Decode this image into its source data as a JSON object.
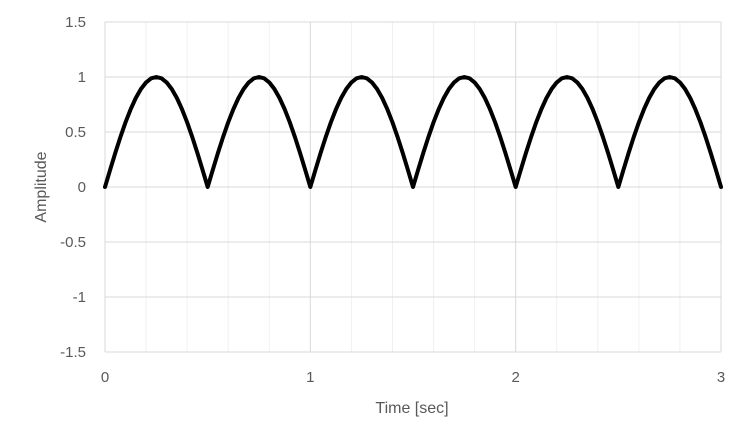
{
  "chart_data": {
    "type": "line",
    "title": "",
    "xlabel": "Time [sec]",
    "ylabel": "Amplitude",
    "xlim": [
      0,
      3
    ],
    "ylim": [
      -1.5,
      1.5
    ],
    "x_ticks": [
      0,
      1,
      2,
      3
    ],
    "x_tick_labels": [
      "0",
      "1",
      "2",
      "3"
    ],
    "x_minor_step": 0.2,
    "y_ticks": [
      -1.5,
      -1,
      -0.5,
      0,
      0.5,
      1,
      1.5
    ],
    "y_tick_labels": [
      "-1.5",
      "-1",
      "-0.5",
      "0",
      "0.5",
      "1",
      "1.5"
    ],
    "grid": true,
    "legend": "none",
    "series": [
      {
        "color": "#000000",
        "x": [
          0,
          0.025,
          0.05,
          0.075,
          0.1,
          0.125,
          0.15,
          0.175,
          0.2,
          0.225,
          0.25,
          0.275,
          0.3,
          0.325,
          0.35,
          0.375,
          0.4,
          0.425,
          0.45,
          0.475,
          0.5,
          0.525,
          0.55,
          0.575,
          0.6,
          0.625,
          0.65,
          0.675,
          0.7,
          0.725,
          0.75,
          0.775,
          0.8,
          0.825,
          0.85,
          0.875,
          0.9,
          0.925,
          0.95,
          0.975,
          1.0,
          1.025,
          1.05,
          1.075,
          1.1,
          1.125,
          1.15,
          1.175,
          1.2,
          1.225,
          1.25,
          1.275,
          1.3,
          1.325,
          1.35,
          1.375,
          1.4,
          1.425,
          1.45,
          1.475,
          1.5,
          1.525,
          1.55,
          1.575,
          1.6,
          1.625,
          1.65,
          1.675,
          1.7,
          1.725,
          1.75,
          1.775,
          1.8,
          1.825,
          1.85,
          1.875,
          1.9,
          1.925,
          1.95,
          1.975,
          2.0,
          2.025,
          2.05,
          2.075,
          2.1,
          2.125,
          2.15,
          2.175,
          2.2,
          2.225,
          2.25,
          2.275,
          2.3,
          2.325,
          2.35,
          2.375,
          2.4,
          2.425,
          2.45,
          2.475,
          2.5,
          2.525,
          2.55,
          2.575,
          2.6,
          2.625,
          2.65,
          2.675,
          2.7,
          2.725,
          2.75,
          2.775,
          2.8,
          2.825,
          2.85,
          2.875,
          2.9,
          2.925,
          2.95,
          2.975,
          3.0
        ],
        "y": [
          0,
          0.156,
          0.309,
          0.454,
          0.588,
          0.707,
          0.809,
          0.891,
          0.951,
          0.988,
          1.0,
          0.988,
          0.951,
          0.891,
          0.809,
          0.707,
          0.588,
          0.454,
          0.309,
          0.156,
          0,
          0.156,
          0.309,
          0.454,
          0.588,
          0.707,
          0.809,
          0.891,
          0.951,
          0.988,
          1.0,
          0.988,
          0.951,
          0.891,
          0.809,
          0.707,
          0.588,
          0.454,
          0.309,
          0.156,
          0,
          0.156,
          0.309,
          0.454,
          0.588,
          0.707,
          0.809,
          0.891,
          0.951,
          0.988,
          1.0,
          0.988,
          0.951,
          0.891,
          0.809,
          0.707,
          0.588,
          0.454,
          0.309,
          0.156,
          0,
          0.156,
          0.309,
          0.454,
          0.588,
          0.707,
          0.809,
          0.891,
          0.951,
          0.988,
          1.0,
          0.988,
          0.951,
          0.891,
          0.809,
          0.707,
          0.588,
          0.454,
          0.309,
          0.156,
          0,
          0.156,
          0.309,
          0.454,
          0.588,
          0.707,
          0.809,
          0.891,
          0.951,
          0.988,
          1.0,
          0.988,
          0.951,
          0.891,
          0.809,
          0.707,
          0.588,
          0.454,
          0.309,
          0.156,
          0,
          0.156,
          0.309,
          0.454,
          0.588,
          0.707,
          0.809,
          0.891,
          0.951,
          0.988,
          1.0,
          0.988,
          0.951,
          0.891,
          0.809,
          0.707,
          0.588,
          0.454,
          0.309,
          0.156,
          0
        ]
      }
    ],
    "colors": {
      "major_grid": "#d9d9d9",
      "minor_grid": "#f0f0f0",
      "label_text": "#595959"
    }
  }
}
